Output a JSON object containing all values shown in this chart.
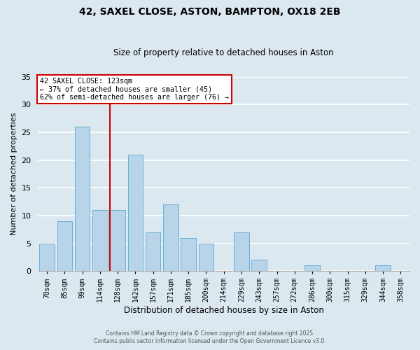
{
  "title": "42, SAXEL CLOSE, ASTON, BAMPTON, OX18 2EB",
  "subtitle": "Size of property relative to detached houses in Aston",
  "xlabel": "Distribution of detached houses by size in Aston",
  "ylabel": "Number of detached properties",
  "categories": [
    "70sqm",
    "85sqm",
    "99sqm",
    "114sqm",
    "128sqm",
    "142sqm",
    "157sqm",
    "171sqm",
    "185sqm",
    "200sqm",
    "214sqm",
    "229sqm",
    "243sqm",
    "257sqm",
    "272sqm",
    "286sqm",
    "300sqm",
    "315sqm",
    "329sqm",
    "344sqm",
    "358sqm"
  ],
  "values": [
    5,
    9,
    26,
    11,
    11,
    21,
    7,
    12,
    6,
    5,
    0,
    7,
    2,
    0,
    0,
    1,
    0,
    0,
    0,
    1,
    0
  ],
  "bar_color": "#b8d4e8",
  "bar_edgecolor": "#6baed6",
  "background_color": "#dce8f0",
  "grid_color": "#ffffff",
  "vline_color": "#cc0000",
  "annotation_line1": "42 SAXEL CLOSE: 123sqm",
  "annotation_line2": "← 37% of detached houses are smaller (45)",
  "annotation_line3": "62% of semi-detached houses are larger (76) →",
  "annotation_box_edgecolor": "#cc0000",
  "annotation_box_facecolor": "#ffffff",
  "ylim": [
    0,
    35
  ],
  "yticks": [
    0,
    5,
    10,
    15,
    20,
    25,
    30,
    35
  ],
  "footer1": "Contains HM Land Registry data © Crown copyright and database right 2025.",
  "footer2": "Contains public sector information licensed under the Open Government Licence v3.0."
}
